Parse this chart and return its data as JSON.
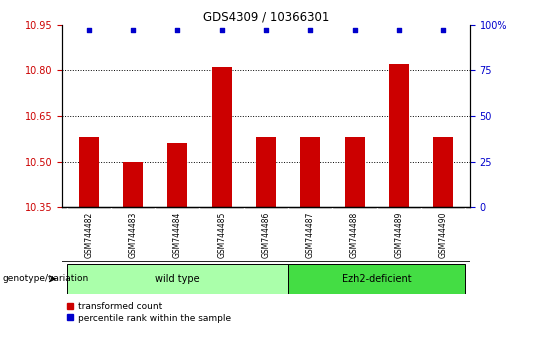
{
  "title": "GDS4309 / 10366301",
  "samples": [
    "GSM744482",
    "GSM744483",
    "GSM744484",
    "GSM744485",
    "GSM744486",
    "GSM744487",
    "GSM744488",
    "GSM744489",
    "GSM744490"
  ],
  "red_values": [
    10.58,
    10.5,
    10.56,
    10.81,
    10.58,
    10.58,
    10.58,
    10.82,
    10.58
  ],
  "blue_values": [
    97,
    97,
    97,
    97,
    97,
    97,
    97,
    97,
    97
  ],
  "ylim_left": [
    10.35,
    10.95
  ],
  "ylim_right": [
    0,
    100
  ],
  "yticks_left": [
    10.35,
    10.5,
    10.65,
    10.8,
    10.95
  ],
  "yticks_right": [
    0,
    25,
    50,
    75,
    100
  ],
  "hlines": [
    10.5,
    10.65,
    10.8
  ],
  "groups": [
    {
      "label": "wild type",
      "start": 0,
      "end": 4,
      "color": "#aaffaa"
    },
    {
      "label": "Ezh2-deficient",
      "start": 5,
      "end": 8,
      "color": "#44dd44"
    }
  ],
  "genotype_label": "genotype/variation",
  "legend_red": "transformed count",
  "legend_blue": "percentile rank within the sample",
  "bar_color": "#cc0000",
  "blue_color": "#0000cc",
  "bar_width": 0.45,
  "tick_label_color_left": "#cc0000",
  "tick_label_color_right": "#0000cc",
  "title_color": "#000000",
  "bg_color": "#ffffff",
  "plot_bg_color": "#ffffff",
  "tick_area_bg": "#cccccc"
}
